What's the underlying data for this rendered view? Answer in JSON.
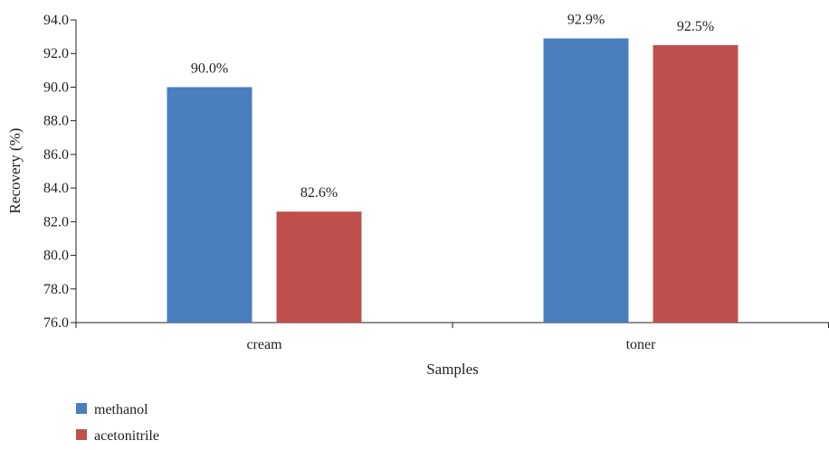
{
  "chart_data": {
    "type": "bar",
    "categories": [
      "cream",
      "toner"
    ],
    "series": [
      {
        "name": "methanol",
        "values": [
          90.0,
          92.9
        ],
        "labels": [
          "90.0%",
          "92.9%"
        ],
        "color": "#4a7ebf"
      },
      {
        "name": "acetonitrile",
        "values": [
          82.6,
          92.5
        ],
        "labels": [
          "82.6%",
          "92.5%"
        ],
        "color": "#c0504d"
      }
    ],
    "xlabel": "Samples",
    "ylabel": "Recovery (%)",
    "ylim": [
      76.0,
      94.0
    ],
    "yticks": [
      "76.0",
      "78.0",
      "80.0",
      "82.0",
      "84.0",
      "86.0",
      "88.0",
      "90.0",
      "92.0",
      "94.0"
    ],
    "grid": false,
    "legend_position": "bottom-left"
  }
}
